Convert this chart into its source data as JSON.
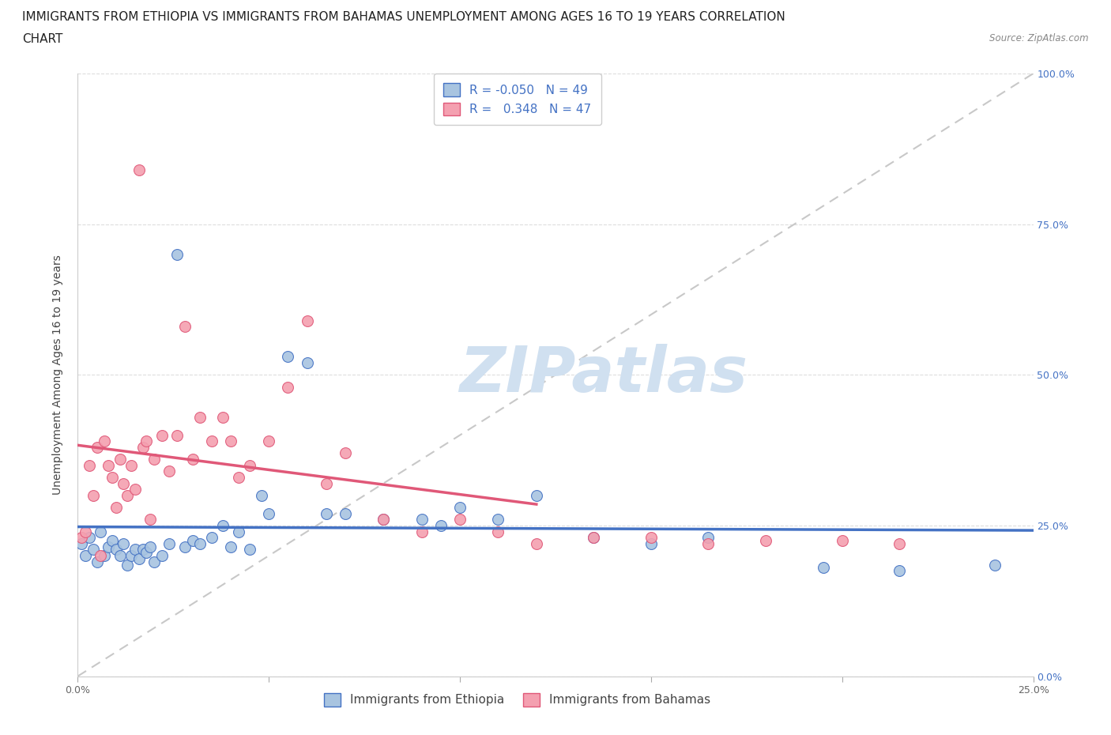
{
  "title_line1": "IMMIGRANTS FROM ETHIOPIA VS IMMIGRANTS FROM BAHAMAS UNEMPLOYMENT AMONG AGES 16 TO 19 YEARS CORRELATION",
  "title_line2": "CHART",
  "source_text": "Source: ZipAtlas.com",
  "ylabel": "Unemployment Among Ages 16 to 19 years",
  "xlim": [
    0.0,
    0.25
  ],
  "ylim": [
    0.0,
    1.0
  ],
  "xticks": [
    0.0,
    0.05,
    0.1,
    0.15,
    0.2,
    0.25
  ],
  "yticks": [
    0.0,
    0.25,
    0.5,
    0.75,
    1.0
  ],
  "ethiopia_R": -0.05,
  "ethiopia_N": 49,
  "bahamas_R": 0.348,
  "bahamas_N": 47,
  "ethiopia_color": "#a8c4e0",
  "bahamas_color": "#f4a0b0",
  "ethiopia_line_color": "#4472c4",
  "bahamas_line_color": "#e05878",
  "ref_line_color": "#c8c8c8",
  "watermark_color": "#d0e0f0",
  "watermark_text": "ZIPatlas",
  "background_color": "#ffffff",
  "ethiopia_x": [
    0.001,
    0.002,
    0.003,
    0.004,
    0.005,
    0.006,
    0.007,
    0.008,
    0.009,
    0.01,
    0.011,
    0.012,
    0.013,
    0.014,
    0.015,
    0.016,
    0.017,
    0.018,
    0.019,
    0.02,
    0.022,
    0.024,
    0.026,
    0.028,
    0.03,
    0.032,
    0.035,
    0.038,
    0.04,
    0.042,
    0.045,
    0.048,
    0.05,
    0.055,
    0.06,
    0.065,
    0.07,
    0.08,
    0.09,
    0.095,
    0.1,
    0.11,
    0.12,
    0.135,
    0.15,
    0.165,
    0.195,
    0.215,
    0.24
  ],
  "ethiopia_y": [
    0.22,
    0.2,
    0.23,
    0.21,
    0.19,
    0.24,
    0.2,
    0.215,
    0.225,
    0.21,
    0.2,
    0.22,
    0.185,
    0.2,
    0.21,
    0.195,
    0.21,
    0.205,
    0.215,
    0.19,
    0.2,
    0.22,
    0.7,
    0.215,
    0.225,
    0.22,
    0.23,
    0.25,
    0.215,
    0.24,
    0.21,
    0.3,
    0.27,
    0.53,
    0.52,
    0.27,
    0.27,
    0.26,
    0.26,
    0.25,
    0.28,
    0.26,
    0.3,
    0.23,
    0.22,
    0.23,
    0.18,
    0.175,
    0.185
  ],
  "bahamas_x": [
    0.001,
    0.002,
    0.003,
    0.004,
    0.005,
    0.006,
    0.007,
    0.008,
    0.009,
    0.01,
    0.011,
    0.012,
    0.013,
    0.014,
    0.015,
    0.016,
    0.017,
    0.018,
    0.019,
    0.02,
    0.022,
    0.024,
    0.026,
    0.028,
    0.03,
    0.032,
    0.035,
    0.038,
    0.04,
    0.042,
    0.045,
    0.05,
    0.055,
    0.06,
    0.065,
    0.07,
    0.08,
    0.09,
    0.1,
    0.11,
    0.12,
    0.135,
    0.15,
    0.165,
    0.18,
    0.2,
    0.215
  ],
  "bahamas_y": [
    0.23,
    0.24,
    0.35,
    0.3,
    0.38,
    0.2,
    0.39,
    0.35,
    0.33,
    0.28,
    0.36,
    0.32,
    0.3,
    0.35,
    0.31,
    0.84,
    0.38,
    0.39,
    0.26,
    0.36,
    0.4,
    0.34,
    0.4,
    0.58,
    0.36,
    0.43,
    0.39,
    0.43,
    0.39,
    0.33,
    0.35,
    0.39,
    0.48,
    0.59,
    0.32,
    0.37,
    0.26,
    0.24,
    0.26,
    0.24,
    0.22,
    0.23,
    0.23,
    0.22,
    0.225,
    0.225,
    0.22
  ],
  "ethiopia_trend": [
    0.0,
    0.25
  ],
  "bahamas_trend_x": [
    0.0,
    0.12
  ],
  "legend_text_color": "#4472c4",
  "title_fontsize": 11,
  "axis_label_fontsize": 10,
  "tick_fontsize": 9,
  "legend_fontsize": 11
}
